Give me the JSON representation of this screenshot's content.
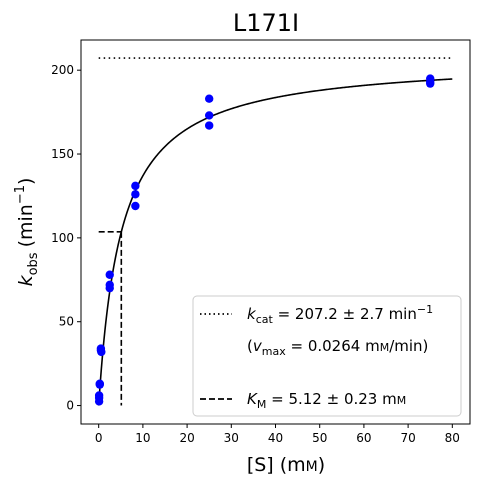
{
  "chart_data": {
    "type": "scatter",
    "title": "L171I",
    "xlabel": {
      "main": "[S] (m",
      "unit": "M",
      "close": ")"
    },
    "ylabel": {
      "k": "k",
      "sub": "obs",
      "unit": "(min",
      "sup": "−1",
      "close": ")"
    },
    "xlim": [
      -4,
      84
    ],
    "ylim": [
      -11,
      218
    ],
    "xticks": [
      0,
      10,
      20,
      30,
      40,
      50,
      60,
      70,
      80
    ],
    "yticks": [
      0,
      50,
      100,
      150,
      200
    ],
    "grid": false,
    "legend_position": "lower-right",
    "colors": {
      "points": "#0000ff",
      "lines": "#000000"
    },
    "series": [
      {
        "kind": "points",
        "x": [
          0.1,
          0.1,
          0.1,
          0.25,
          0.25,
          0.5,
          0.5,
          0.6,
          2.5,
          2.5,
          2.5,
          8.3,
          8.3,
          8.3,
          25,
          25,
          25,
          75,
          75,
          75
        ],
        "y": [
          2.5,
          4.5,
          6,
          13,
          12.5,
          34,
          33,
          32,
          78,
          72,
          70,
          131,
          126,
          119,
          183,
          173,
          167,
          195,
          193,
          192
        ]
      },
      {
        "kind": "fit",
        "model": "michaelis-menten",
        "kcat": 207.2,
        "km": 5.12,
        "x_range": [
          0,
          80
        ]
      },
      {
        "kind": "kcat-line",
        "x": [
          0,
          80
        ],
        "y": [
          207.2,
          207.2
        ]
      },
      {
        "kind": "km-line",
        "x": [
          0,
          5.12
        ],
        "y": [
          103.6,
          103.6
        ],
        "drop_x": 5.12
      }
    ],
    "legend": {
      "kcat": {
        "k": "k",
        "sub": "cat",
        "value": " = 207.2 ± 2.7 min",
        "sup": "−1"
      },
      "vmax": {
        "open": "(",
        "v": "v",
        "sub": "max",
        "value": " = 0.0264 m",
        "unit": "M",
        "close": "/min)"
      },
      "km": {
        "k": "K",
        "sub": "M",
        "value": " = 5.12 ± 0.23 m",
        "unit": "M"
      }
    }
  }
}
